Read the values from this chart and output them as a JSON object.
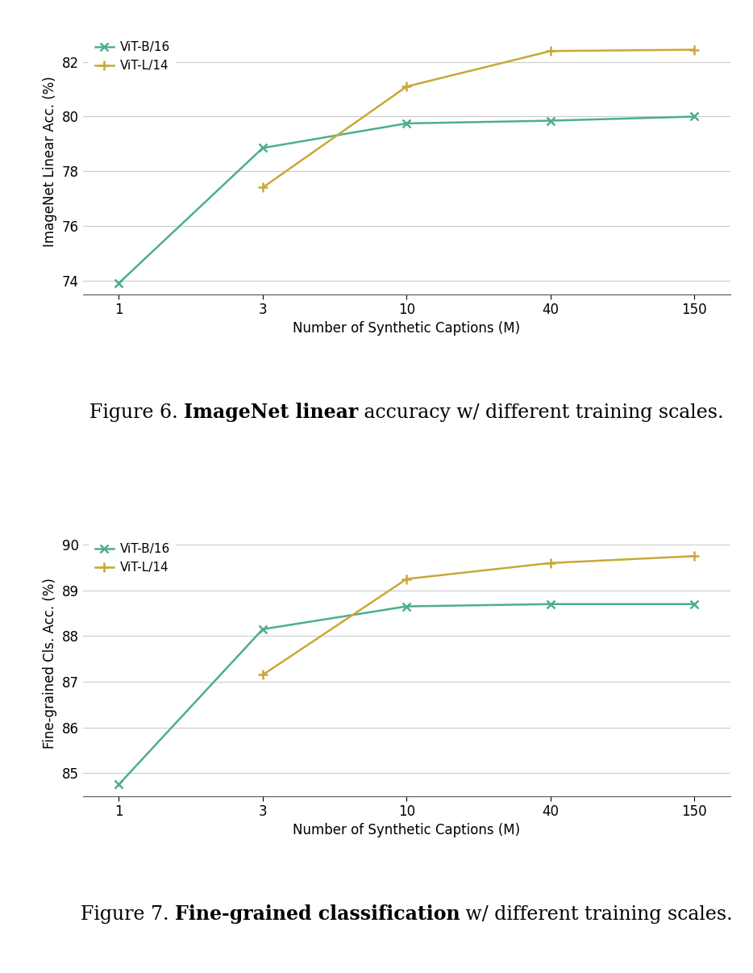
{
  "x_values": [
    1,
    3,
    10,
    40,
    150
  ],
  "xlabel": "Number of Synthetic Captions (M)",
  "plot1": {
    "ylabel": "ImageNet Linear Acc. (%)",
    "ylim": [
      73.5,
      83.2
    ],
    "yticks": [
      74,
      76,
      78,
      80,
      82
    ],
    "vit_b16": [
      73.9,
      78.85,
      79.75,
      79.85,
      80.0
    ],
    "vit_l14": [
      null,
      77.4,
      81.1,
      82.4,
      82.45
    ],
    "caption_normal1": "Figure 6. ",
    "caption_bold": "ImageNet linear",
    "caption_normal2": " accuracy w/ different training scales."
  },
  "plot2": {
    "ylabel": "Fine-grained Cls. Acc. (%)",
    "ylim": [
      84.5,
      90.3
    ],
    "yticks": [
      85,
      86,
      87,
      88,
      89,
      90
    ],
    "vit_b16": [
      84.75,
      88.15,
      88.65,
      88.7,
      88.7
    ],
    "vit_l14": [
      null,
      87.15,
      89.25,
      89.6,
      89.75
    ],
    "caption_normal1": "Figure 7. ",
    "caption_bold": "Fine-grained classification",
    "caption_normal2": " w/ different training scales."
  },
  "color_b16": "#4CAF8A",
  "color_l14": "#C8A838",
  "background_color": "#ffffff",
  "grid_color": "#cccccc"
}
